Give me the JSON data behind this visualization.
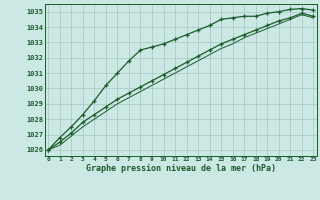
{
  "xlabel": "Graphe pression niveau de la mer (hPa)",
  "bg_color": "#cce8e4",
  "grid_color": "#aaccc8",
  "line_color": "#1a5c2a",
  "x_ticks": [
    0,
    1,
    2,
    3,
    4,
    5,
    6,
    7,
    8,
    9,
    10,
    11,
    12,
    13,
    14,
    15,
    16,
    17,
    18,
    19,
    20,
    21,
    22,
    23
  ],
  "y_ticks": [
    1026,
    1027,
    1028,
    1029,
    1030,
    1031,
    1032,
    1033,
    1034,
    1035
  ],
  "ylim": [
    1025.6,
    1035.5
  ],
  "xlim": [
    -0.3,
    23.3
  ],
  "series1": [
    1026.0,
    1026.8,
    1027.5,
    1028.3,
    1029.2,
    1030.2,
    1031.0,
    1031.8,
    1032.5,
    1032.7,
    1032.9,
    1033.2,
    1033.5,
    1033.8,
    1034.1,
    1034.5,
    1034.6,
    1034.7,
    1034.7,
    1034.9,
    1035.0,
    1035.15,
    1035.2,
    1035.1
  ],
  "series2": [
    1026.0,
    1026.5,
    1027.1,
    1027.8,
    1028.3,
    1028.8,
    1029.3,
    1029.7,
    1030.1,
    1030.5,
    1030.9,
    1031.3,
    1031.7,
    1032.1,
    1032.5,
    1032.9,
    1033.2,
    1033.5,
    1033.8,
    1034.1,
    1034.4,
    1034.6,
    1034.9,
    1034.7
  ],
  "series3": [
    1026.0,
    1026.3,
    1026.9,
    1027.5,
    1028.0,
    1028.5,
    1029.0,
    1029.4,
    1029.8,
    1030.2,
    1030.6,
    1031.0,
    1031.4,
    1031.8,
    1032.2,
    1032.6,
    1032.9,
    1033.3,
    1033.6,
    1033.9,
    1034.2,
    1034.5,
    1034.8,
    1034.6
  ]
}
